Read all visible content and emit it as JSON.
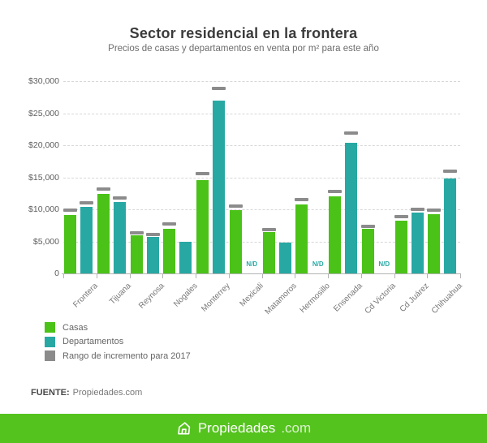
{
  "header": {
    "title": "Sector residencial en la frontera",
    "subtitle": "Precios de casas y departamentos en venta por m² para este año"
  },
  "legend": {
    "items": [
      {
        "label": "Casas",
        "color": "#4bc217"
      },
      {
        "label": "Departamentos",
        "color": "#27a8a3"
      },
      {
        "label": "Rango de incremento para 2017",
        "color": "#8b8b8b"
      }
    ]
  },
  "source": {
    "label": "FUENTE:",
    "value": "Propiedades.com"
  },
  "footer_bar": {
    "brand": "Propiedades",
    "tld": ".com",
    "background": "#55c31e",
    "icon": "house-icon"
  },
  "chart_data": {
    "type": "bar",
    "title": "Sector residencial en la frontera",
    "subtitle": "Precios de casas y departamentos en venta por m² para este año",
    "categories": [
      "Frontera",
      "Tijuana",
      "Reynosa",
      "Nogales",
      "Monterrey",
      "Mexicali",
      "Matamoros",
      "Hermosillo",
      "Ensenada",
      "Cd Victoria",
      "Cd Juárez",
      "Chihuahua"
    ],
    "series": [
      {
        "name": "Casas",
        "color": "#4bc217",
        "values": [
          9100,
          12400,
          5900,
          7000,
          14500,
          9900,
          6400,
          10800,
          12000,
          6900,
          8200,
          9200
        ],
        "increment_markers": [
          9900,
          13200,
          6300,
          7700,
          15600,
          10500,
          6800,
          11500,
          12800,
          7400,
          8800,
          9900
        ]
      },
      {
        "name": "Departamentos",
        "color": "#27a8a3",
        "values": [
          10400,
          11100,
          5700,
          5000,
          27000,
          null,
          4800,
          null,
          20400,
          null,
          9500,
          14800
        ],
        "increment_markers": [
          11000,
          11800,
          6100,
          null,
          28900,
          null,
          null,
          null,
          21900,
          null,
          10000,
          16000
        ]
      }
    ],
    "marker_legend": "Rango de incremento para 2017",
    "marker_color": "#8b8b8b",
    "nd_label": "N/D",
    "y_ticks": [
      {
        "label": "$30,000",
        "value": 30000
      },
      {
        "label": "$25,000",
        "value": 25000
      },
      {
        "label": "$20,000",
        "value": 20000
      },
      {
        "label": "$15,000",
        "value": 15000
      },
      {
        "label": "$10,000",
        "value": 10000
      },
      {
        "label": "$5,000",
        "value": 5000
      },
      {
        "label": "0",
        "value": 0
      }
    ],
    "ylim": [
      0,
      30000
    ],
    "grid": "dashed-horizontal",
    "legend_position": "bottom-left"
  }
}
